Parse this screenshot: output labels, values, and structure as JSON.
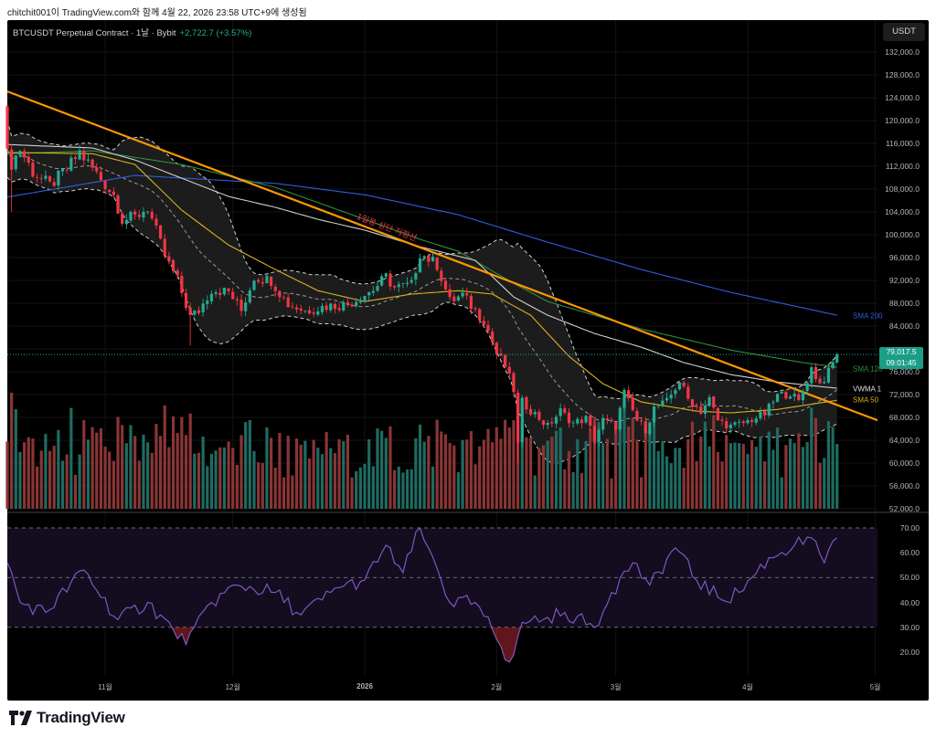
{
  "header": {
    "caption": "chitchit001이 TradingView.com와 함께 4월 22, 2026 23:58 UTC+9에 생성됨"
  },
  "symbol": {
    "title": "BTCUSDT Perpetual Contract · 1날 · Bybit",
    "change": "+2,722.7 (+3.57%)"
  },
  "currency_button": "USDT",
  "last_price": {
    "price": "79,017.5",
    "countdown": "09:01:45"
  },
  "indicator_labels": {
    "sma200": "SMA 200",
    "sma120": "SMA 120",
    "vwma": "VWMA 1",
    "sma50": "SMA 50"
  },
  "logo": {
    "text": "TradingView"
  },
  "colors": {
    "up": "#22ab94",
    "down": "#f23645",
    "vol_up": "#1f6b62",
    "vol_down": "#8a3535",
    "sma200": "#2f5ee0",
    "sma120": "#2f8f3c",
    "sma50": "#d6b31e",
    "vwma": "#cfcfcf",
    "trendline": "#ff9800",
    "trend_label": "#f23645",
    "rsi": "#7e57c2",
    "rsi_band": "#130d1f"
  },
  "chart_data": {
    "type": "candlestick",
    "title": "BTCUSDT Perpetual Contract · 1날 · Bybit",
    "interval": "1D",
    "start_date": "2025-10-09",
    "candle_count": 196,
    "first_open": 122500,
    "last_close": 79017.5,
    "close_path": [
      [
        0,
        114000
      ],
      [
        1,
        112500
      ],
      [
        3,
        115000
      ],
      [
        6,
        111000
      ],
      [
        10,
        108600
      ],
      [
        14,
        111500
      ],
      [
        17,
        114400
      ],
      [
        21,
        110700
      ],
      [
        25,
        107000
      ],
      [
        27,
        102700
      ],
      [
        30,
        103000
      ],
      [
        33,
        104800
      ],
      [
        37,
        96300
      ],
      [
        40,
        92000
      ],
      [
        43,
        85600
      ],
      [
        45,
        86700
      ],
      [
        48,
        90400
      ],
      [
        52,
        90000
      ],
      [
        55,
        86700
      ],
      [
        58,
        92600
      ],
      [
        62,
        92000
      ],
      [
        66,
        87800
      ],
      [
        70,
        86700
      ],
      [
        75,
        87500
      ],
      [
        80,
        87800
      ],
      [
        86,
        90400
      ],
      [
        89,
        92600
      ],
      [
        91,
        90700
      ],
      [
        95,
        91200
      ],
      [
        97,
        96800
      ],
      [
        101,
        94700
      ],
      [
        104,
        88300
      ],
      [
        107,
        89400
      ],
      [
        110,
        86700
      ],
      [
        112,
        85100
      ],
      [
        115,
        79200
      ],
      [
        117,
        77000
      ],
      [
        119,
        72800
      ],
      [
        120,
        63200
      ],
      [
        121,
        70700
      ],
      [
        124,
        68600
      ],
      [
        127,
        66400
      ],
      [
        130,
        69100
      ],
      [
        133,
        67000
      ],
      [
        136,
        67800
      ],
      [
        138,
        64300
      ],
      [
        140,
        67500
      ],
      [
        143,
        66400
      ],
      [
        145,
        72300
      ],
      [
        148,
        67500
      ],
      [
        150,
        65900
      ],
      [
        152,
        69600
      ],
      [
        155,
        70700
      ],
      [
        158,
        74400
      ],
      [
        160,
        71200
      ],
      [
        163,
        69100
      ],
      [
        165,
        71200
      ],
      [
        167,
        67500
      ],
      [
        170,
        66400
      ],
      [
        173,
        67000
      ],
      [
        176,
        68000
      ],
      [
        178,
        68600
      ],
      [
        181,
        71800
      ],
      [
        184,
        72300
      ],
      [
        186,
        70700
      ],
      [
        189,
        76600
      ],
      [
        191,
        73900
      ],
      [
        193,
        75900
      ],
      [
        195,
        79017.5
      ]
    ],
    "wick_extremes": [
      {
        "day": 1,
        "low": 104000
      },
      {
        "day": 43,
        "low": 80600
      },
      {
        "day": 120,
        "low": 60000
      }
    ],
    "volume_spikes": [
      [
        1,
        1.0
      ],
      [
        43,
        0.82
      ],
      [
        118,
        0.7
      ],
      [
        120,
        1.0
      ],
      [
        121,
        0.75
      ]
    ],
    "indicators": {
      "sma200": [
        [
          0,
          106600
        ],
        [
          30,
          110400
        ],
        [
          63,
          109000
        ],
        [
          84,
          107000
        ],
        [
          106,
          103500
        ],
        [
          127,
          98700
        ],
        [
          149,
          93900
        ],
        [
          170,
          89900
        ],
        [
          195,
          85900
        ]
      ],
      "sma120": [
        [
          0,
          114200
        ],
        [
          20,
          114700
        ],
        [
          41,
          112300
        ],
        [
          63,
          108300
        ],
        [
          84,
          102700
        ],
        [
          97,
          99200
        ],
        [
          106,
          97100
        ],
        [
          119,
          91500
        ],
        [
          127,
          88300
        ],
        [
          149,
          83500
        ],
        [
          170,
          79800
        ],
        [
          187,
          77600
        ],
        [
          195,
          76800
        ]
      ],
      "sma50": [
        [
          0,
          114400
        ],
        [
          20,
          114200
        ],
        [
          30,
          112300
        ],
        [
          41,
          104300
        ],
        [
          52,
          98200
        ],
        [
          63,
          93900
        ],
        [
          73,
          90200
        ],
        [
          84,
          88300
        ],
        [
          95,
          89600
        ],
        [
          106,
          90200
        ],
        [
          114,
          89600
        ],
        [
          123,
          85900
        ],
        [
          132,
          78700
        ],
        [
          140,
          73900
        ],
        [
          149,
          70700
        ],
        [
          162,
          69100
        ],
        [
          170,
          68800
        ],
        [
          181,
          69400
        ],
        [
          195,
          71000
        ]
      ],
      "vwma": [
        [
          0,
          115800
        ],
        [
          20,
          115200
        ],
        [
          30,
          113100
        ],
        [
          41,
          109900
        ],
        [
          52,
          106700
        ],
        [
          63,
          104800
        ],
        [
          73,
          102700
        ],
        [
          84,
          100800
        ],
        [
          97,
          97900
        ],
        [
          110,
          95500
        ],
        [
          119,
          89100
        ],
        [
          127,
          85900
        ],
        [
          138,
          82700
        ],
        [
          149,
          80300
        ],
        [
          159,
          77600
        ],
        [
          170,
          75500
        ],
        [
          181,
          74200
        ],
        [
          195,
          73100
        ]
      ],
      "bollinger": {
        "period": 20,
        "stddev": 2
      }
    },
    "trendline": {
      "label": "1일봉 상단 저항선",
      "points": [
        [
          0,
          125100
        ],
        [
          204.5,
          67500
        ]
      ]
    },
    "rsi": {
      "levels": [
        70,
        50,
        30
      ],
      "values": [
        [
          0,
          56
        ],
        [
          3,
          40
        ],
        [
          9,
          36
        ],
        [
          18,
          53
        ],
        [
          26,
          33
        ],
        [
          33,
          40
        ],
        [
          39,
          29
        ],
        [
          42,
          23
        ],
        [
          48,
          40
        ],
        [
          54,
          47
        ],
        [
          63,
          44
        ],
        [
          69,
          35
        ],
        [
          78,
          46
        ],
        [
          84,
          49
        ],
        [
          89,
          63
        ],
        [
          93,
          52
        ],
        [
          97,
          70
        ],
        [
          99,
          62
        ],
        [
          104,
          40
        ],
        [
          110,
          40
        ],
        [
          114,
          29
        ],
        [
          118,
          16
        ],
        [
          121,
          32
        ],
        [
          127,
          34
        ],
        [
          131,
          36
        ],
        [
          138,
          30
        ],
        [
          142,
          44
        ],
        [
          147,
          56
        ],
        [
          151,
          47
        ],
        [
          157,
          62
        ],
        [
          162,
          49
        ],
        [
          168,
          41
        ],
        [
          172,
          44
        ],
        [
          179,
          58
        ],
        [
          185,
          63
        ],
        [
          189,
          66
        ],
        [
          192,
          56
        ],
        [
          195,
          66
        ]
      ],
      "ticks": [
        "70.00",
        "60.00",
        "50.00",
        "40.00",
        "30.00",
        "20.00"
      ],
      "tick_values": [
        70,
        60,
        50,
        40,
        30,
        20
      ]
    },
    "price_axis": {
      "range": [
        52000,
        132000
      ],
      "ticks": [
        "132,000.0",
        "128,000.0",
        "124,000.0",
        "120,000.0",
        "116,000.0",
        "112,000.0",
        "108,000.0",
        "104,000.0",
        "100,000.0",
        "96,000.0",
        "92,000.0",
        "88,000.0",
        "84,000.0",
        "80,000.0",
        "76,000.0",
        "72,000.0",
        "68,000.0",
        "64,000.0",
        "60,000.0",
        "56,000.0",
        "52,000.0"
      ],
      "tick_values": [
        132000,
        128000,
        124000,
        120000,
        116000,
        112000,
        108000,
        104000,
        100000,
        96000,
        92000,
        88000,
        84000,
        80000,
        76000,
        72000,
        68000,
        64000,
        60000,
        56000,
        52000
      ]
    },
    "time_axis": {
      "ticks": [
        {
          "label": "11월",
          "day": 23
        },
        {
          "label": "12월",
          "day": 53
        },
        {
          "label": "2026",
          "day": 84
        },
        {
          "label": "2월",
          "day": 115
        },
        {
          "label": "3월",
          "day": 143
        },
        {
          "label": "4월",
          "day": 174
        },
        {
          "label": "5월",
          "day": 204
        }
      ]
    },
    "grid": true
  }
}
